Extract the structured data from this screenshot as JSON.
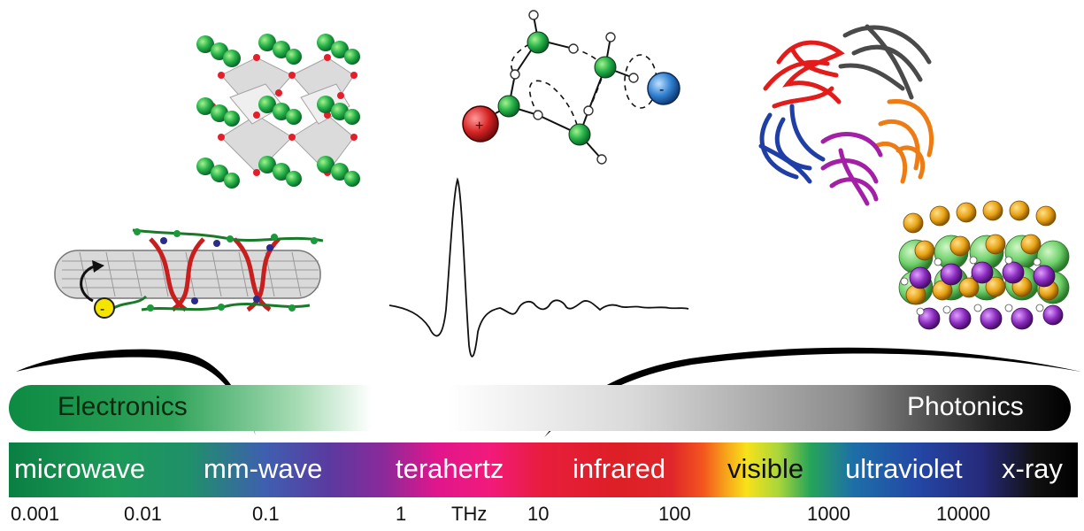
{
  "band": {
    "left_label": "Electronics",
    "right_label": "Photonics"
  },
  "spectrum": {
    "regions": [
      "microwave",
      "mm-wave",
      "terahertz",
      "infrared",
      "visible",
      "ultraviolet",
      "x-ray"
    ]
  },
  "axis": {
    "ticks": [
      "0.001",
      "0.01",
      "0.1",
      "1",
      "10",
      "100",
      "1000",
      "10000"
    ],
    "unit": "THz"
  },
  "figures": {
    "crystal": "perovskite-lattice-figure",
    "molecule": "hydrogen-bond-chain-figure",
    "protein": "protein-complex-figure",
    "nanotube": "carbon-nanotube-figure",
    "salt": "ionic-crystal-figure",
    "pulse": "thz-pulse-waveform"
  },
  "colors": {
    "electronics_green": "#0d8a43",
    "photonics_black": "#000000",
    "ion_positive": "#d42a2a",
    "ion_negative": "#2f7fd0",
    "atom_green": "#1f9a4a"
  }
}
